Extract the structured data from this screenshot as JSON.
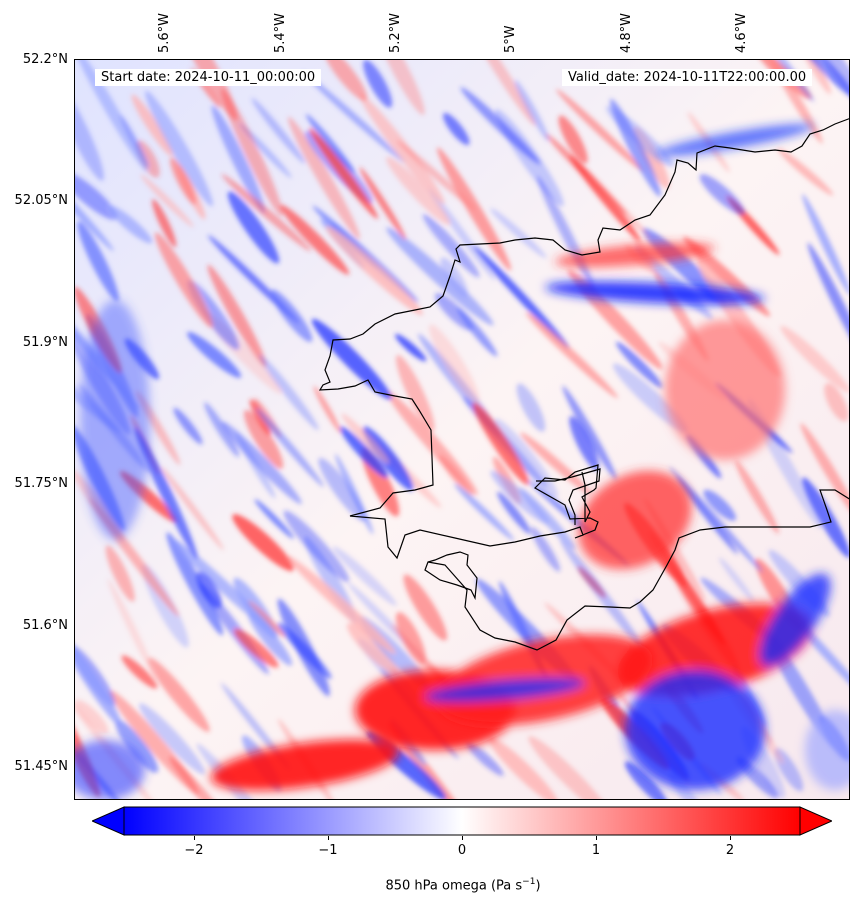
{
  "map": {
    "start_label": "Start date: 2024-10-11_00:00:00",
    "valid_label": "Valid_date: 2024-10-11T22:00:00.00",
    "lon_ticks": [
      "5.6°W",
      "5.4°W",
      "5.2°W",
      "5°W",
      "4.8°W",
      "4.6°W"
    ],
    "lat_ticks": [
      "52.2°N",
      "52.05°N",
      "51.9°N",
      "51.75°N",
      "51.6°N",
      "51.45°N"
    ],
    "field": "850 hPa omega",
    "colormap": "bwr",
    "colors": {
      "negative": "#0000ff",
      "neutral": "#ffffff",
      "positive": "#ff0000",
      "coastline": "#000000"
    }
  },
  "colorbar": {
    "label_main": "850 hPa omega (Pa s",
    "label_exp": "−1",
    "label_close": ")",
    "ticks": [
      "−2",
      "−1",
      "0",
      "1",
      "2"
    ],
    "vmin": -2.5,
    "vmax": 2.5,
    "extend": "both"
  }
}
